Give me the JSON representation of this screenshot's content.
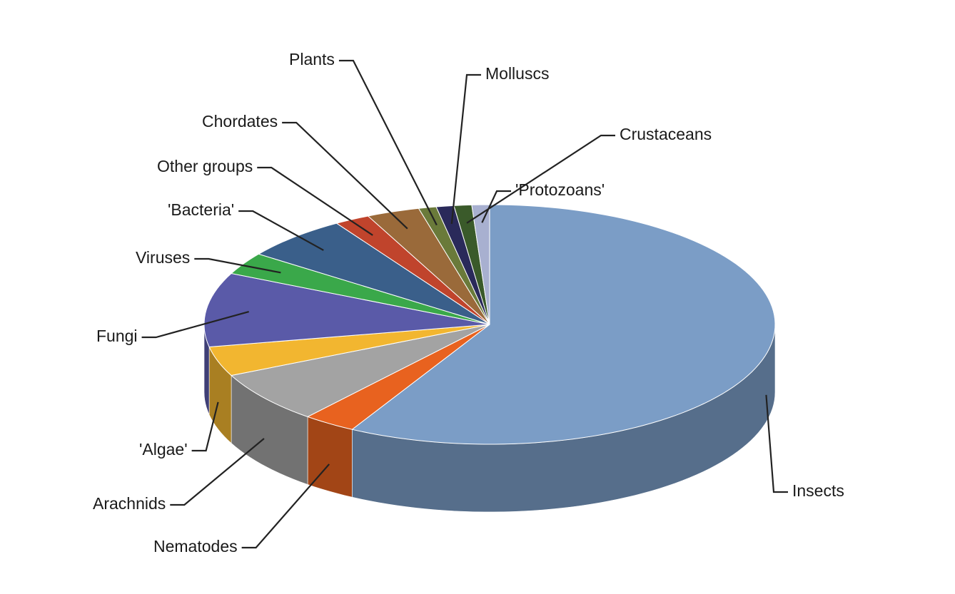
{
  "chart_data": {
    "type": "pie",
    "categories": [
      "Insects",
      "Nematodes",
      "Arachnids",
      "'Algae'",
      "Fungi",
      "Viruses",
      "'Bacteria'",
      "Other groups",
      "Chordates",
      "Plants",
      "Molluscs",
      "Crustaceans",
      "'Protozoans'"
    ],
    "values": [
      58,
      3,
      7,
      4,
      10,
      3,
      6,
      2,
      3,
      1,
      1,
      1,
      1
    ],
    "colors": [
      "#7b9dc6",
      "#e8621f",
      "#a3a3a3",
      "#f2b630",
      "#5a5aa8",
      "#3aa84a",
      "#3a5f8a",
      "#c0442c",
      "#9a6a3a",
      "#6a7a3a",
      "#2a2a5a",
      "#3a5a2a",
      "#a8b0d0"
    ]
  }
}
